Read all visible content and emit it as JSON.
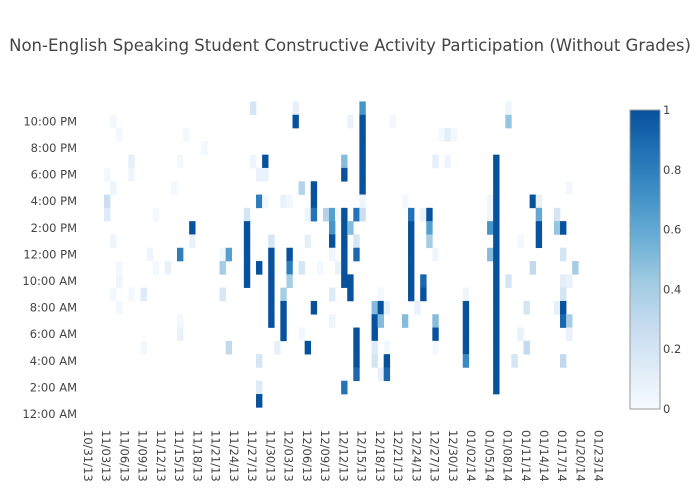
{
  "chart_data": {
    "type": "heatmap",
    "title": "Non-English Speaking Student Constructive Activity Participation (Without Grades)",
    "xlabel": "",
    "ylabel": "",
    "x_start_date": "10/31/13",
    "x_tick_labels": [
      "10/31/13",
      "11/03/13",
      "11/06/13",
      "11/09/13",
      "11/12/13",
      "11/15/13",
      "11/18/13",
      "11/21/13",
      "11/24/13",
      "11/27/13",
      "11/30/13",
      "12/03/13",
      "12/06/13",
      "12/09/13",
      "12/12/13",
      "12/15/13",
      "12/18/13",
      "12/21/13",
      "12/24/13",
      "12/27/13",
      "12/30/13",
      "01/02/14",
      "01/05/14",
      "01/08/14",
      "01/11/14",
      "01/14/14",
      "01/17/14",
      "01/20/14",
      "01/23/14"
    ],
    "x_tick_step_days": 3,
    "y_tick_labels": [
      "12:00 AM",
      "2:00 AM",
      "4:00 AM",
      "6:00 AM",
      "8:00 AM",
      "10:00 AM",
      "12:00 PM",
      "2:00 PM",
      "4:00 PM",
      "6:00 PM",
      "8:00 PM",
      "10:00 PM"
    ],
    "y_tick_step_hours": 2,
    "colorbar": {
      "ticks": [
        "0",
        "0.2",
        "0.4",
        "0.6",
        "0.8",
        "1"
      ],
      "range": [
        0,
        1
      ]
    },
    "colorscale": [
      "#f7fbff",
      "#deebf7",
      "#c6dbef",
      "#9ecae1",
      "#6baed6",
      "#4292c6",
      "#2171b5",
      "#08519c"
    ],
    "cells_format": "[day_index_from_start, hour_of_day, value]",
    "cells": [
      [
        28,
        23,
        0.2
      ],
      [
        35,
        23,
        0.1
      ],
      [
        5,
        22,
        0.03
      ],
      [
        35,
        22,
        1
      ],
      [
        6,
        21,
        0.03
      ],
      [
        17,
        21,
        0.03
      ],
      [
        20,
        20,
        0.03
      ],
      [
        8,
        19,
        0.1
      ],
      [
        16,
        19,
        0.03
      ],
      [
        28,
        19,
        0.05
      ],
      [
        30,
        19,
        1
      ],
      [
        4,
        18,
        0.03
      ],
      [
        8,
        18,
        0.05
      ],
      [
        29,
        18,
        0.08
      ],
      [
        30,
        18,
        0.08
      ],
      [
        5,
        17,
        0.05
      ],
      [
        15,
        17,
        0.03
      ],
      [
        36,
        17,
        0.35
      ],
      [
        38,
        17,
        1
      ],
      [
        4,
        16,
        0.25
      ],
      [
        29,
        16,
        0.8
      ],
      [
        30,
        16,
        0.03
      ],
      [
        33,
        16,
        0.08
      ],
      [
        34,
        16,
        0.03
      ],
      [
        38,
        16,
        1
      ],
      [
        4,
        15,
        0.15
      ],
      [
        12,
        15,
        0.03
      ],
      [
        27,
        15,
        0.2
      ],
      [
        37,
        15,
        0.05
      ],
      [
        38,
        15,
        0.85
      ],
      [
        40,
        15,
        0.35
      ],
      [
        41,
        15,
        0.65
      ],
      [
        42,
        15,
        0.03
      ],
      [
        18,
        14,
        1
      ],
      [
        27,
        14,
        1
      ],
      [
        41,
        14,
        0.7
      ],
      [
        5,
        13,
        0.05
      ],
      [
        18,
        13,
        0.08
      ],
      [
        27,
        13,
        1
      ],
      [
        31,
        13,
        0.2
      ],
      [
        37,
        13,
        0.1
      ],
      [
        41,
        13,
        1
      ],
      [
        11,
        12,
        0.05
      ],
      [
        16,
        12,
        0.8
      ],
      [
        23,
        12,
        0.03
      ],
      [
        24,
        12,
        0.65
      ],
      [
        27,
        12,
        1
      ],
      [
        31,
        12,
        1
      ],
      [
        34,
        12,
        1
      ],
      [
        41,
        12,
        0.05
      ],
      [
        6,
        11,
        0.03
      ],
      [
        12,
        11,
        0.03
      ],
      [
        14,
        11,
        0.08
      ],
      [
        23,
        11,
        0.4
      ],
      [
        27,
        11,
        1
      ],
      [
        29,
        11,
        1
      ],
      [
        31,
        11,
        1
      ],
      [
        34,
        11,
        0.8
      ],
      [
        36,
        11,
        0.2
      ],
      [
        39,
        11,
        0.03
      ],
      [
        42,
        11,
        0.08
      ],
      [
        6,
        10,
        0.05
      ],
      [
        27,
        10,
        1
      ],
      [
        31,
        10,
        1
      ],
      [
        34,
        10,
        0.4
      ],
      [
        5,
        9,
        0.03
      ],
      [
        8,
        9,
        0.03
      ],
      [
        10,
        9,
        0.15
      ],
      [
        23,
        9,
        0.18
      ],
      [
        31,
        9,
        1
      ],
      [
        33,
        9,
        0.4
      ],
      [
        41,
        9,
        0.15
      ],
      [
        6,
        8,
        0.03
      ],
      [
        31,
        8,
        1
      ],
      [
        33,
        8,
        1
      ],
      [
        38,
        8,
        1
      ],
      [
        16,
        7,
        0.03
      ],
      [
        31,
        7,
        1
      ],
      [
        33,
        7,
        1
      ],
      [
        41,
        7,
        0.05
      ],
      [
        16,
        6,
        0.08
      ],
      [
        33,
        6,
        1
      ],
      [
        36,
        6,
        0.03
      ],
      [
        10,
        5,
        0.03
      ],
      [
        24,
        5,
        0.3
      ],
      [
        32,
        5,
        0.1
      ],
      [
        37,
        5,
        1
      ],
      [
        29,
        4,
        0.2
      ],
      [
        29,
        2,
        0.15
      ],
      [
        29,
        1,
        1
      ],
      [
        46,
        23,
        0.7
      ],
      [
        70,
        23,
        0.05
      ],
      [
        44,
        22,
        0.08
      ],
      [
        46,
        22,
        1
      ],
      [
        51,
        22,
        0.03
      ],
      [
        70,
        22,
        0.45
      ],
      [
        46,
        21,
        1
      ],
      [
        59,
        21,
        0.03
      ],
      [
        60,
        21,
        0.12
      ],
      [
        61,
        21,
        0.03
      ],
      [
        46,
        20,
        1
      ],
      [
        43,
        19,
        0.5
      ],
      [
        46,
        19,
        1
      ],
      [
        58,
        19,
        0.1
      ],
      [
        60,
        19,
        0.05
      ],
      [
        68,
        19,
        1
      ],
      [
        43,
        18,
        1
      ],
      [
        46,
        18,
        1
      ],
      [
        68,
        18,
        1
      ],
      [
        46,
        17,
        1
      ],
      [
        68,
        17,
        1
      ],
      [
        80,
        17,
        0.03
      ],
      [
        46,
        16,
        0.05
      ],
      [
        53,
        16,
        0.03
      ],
      [
        67,
        16,
        0.05
      ],
      [
        68,
        16,
        1
      ],
      [
        74,
        16,
        1
      ],
      [
        75,
        16,
        0.08
      ],
      [
        43,
        15,
        1
      ],
      [
        45,
        15,
        0.85
      ],
      [
        46,
        15,
        0.25
      ],
      [
        54,
        15,
        0.85
      ],
      [
        56,
        15,
        0.08
      ],
      [
        57,
        15,
        1
      ],
      [
        67,
        15,
        0.05
      ],
      [
        68,
        15,
        1
      ],
      [
        75,
        15,
        0.6
      ],
      [
        78,
        15,
        0.2
      ],
      [
        43,
        14,
        1
      ],
      [
        44,
        14,
        0.5
      ],
      [
        54,
        14,
        1
      ],
      [
        57,
        14,
        0.65
      ],
      [
        67,
        14,
        0.7
      ],
      [
        68,
        14,
        1
      ],
      [
        75,
        14,
        1
      ],
      [
        78,
        14,
        0.45
      ],
      [
        79,
        14,
        1
      ],
      [
        43,
        13,
        1
      ],
      [
        45,
        13,
        0.2
      ],
      [
        54,
        13,
        1
      ],
      [
        57,
        13,
        0.4
      ],
      [
        68,
        13,
        1
      ],
      [
        72,
        13,
        0.03
      ],
      [
        75,
        13,
        1
      ],
      [
        43,
        12,
        1
      ],
      [
        45,
        12,
        0.9
      ],
      [
        54,
        12,
        1
      ],
      [
        58,
        12,
        0.05
      ],
      [
        67,
        12,
        0.5
      ],
      [
        68,
        12,
        1
      ],
      [
        79,
        12,
        0.2
      ],
      [
        43,
        11,
        1
      ],
      [
        54,
        11,
        1
      ],
      [
        68,
        11,
        1
      ],
      [
        74,
        11,
        0.3
      ],
      [
        81,
        11,
        0.4
      ],
      [
        43,
        10,
        1
      ],
      [
        44,
        10,
        1
      ],
      [
        54,
        10,
        1
      ],
      [
        56,
        10,
        0.9
      ],
      [
        68,
        10,
        1
      ],
      [
        70,
        10,
        0.2
      ],
      [
        79,
        10,
        0.12
      ],
      [
        80,
        10,
        0.08
      ],
      [
        44,
        9,
        1
      ],
      [
        49,
        9,
        0.03
      ],
      [
        54,
        9,
        1
      ],
      [
        56,
        9,
        1
      ],
      [
        63,
        9,
        0.05
      ],
      [
        68,
        9,
        1
      ],
      [
        79,
        9,
        0.2
      ],
      [
        48,
        8,
        0.5
      ],
      [
        49,
        8,
        1
      ],
      [
        50,
        8,
        0.08
      ],
      [
        55,
        8,
        0.08
      ],
      [
        63,
        8,
        1
      ],
      [
        68,
        8,
        1
      ],
      [
        73,
        8,
        0.2
      ],
      [
        78,
        8,
        0.1
      ],
      [
        79,
        8,
        1
      ],
      [
        48,
        7,
        1
      ],
      [
        49,
        7,
        0.5
      ],
      [
        53,
        7,
        0.5
      ],
      [
        58,
        7,
        0.5
      ],
      [
        63,
        7,
        1
      ],
      [
        68,
        7,
        1
      ],
      [
        79,
        7,
        0.9
      ],
      [
        80,
        7,
        0.4
      ],
      [
        45,
        6,
        1
      ],
      [
        48,
        6,
        1
      ],
      [
        58,
        6,
        1
      ],
      [
        63,
        6,
        1
      ],
      [
        68,
        6,
        1
      ],
      [
        72,
        6,
        0.08
      ],
      [
        80,
        6,
        0.08
      ],
      [
        45,
        5,
        1
      ],
      [
        48,
        5,
        0.15
      ],
      [
        50,
        5,
        0.03
      ],
      [
        58,
        5,
        0.03
      ],
      [
        63,
        5,
        1
      ],
      [
        68,
        5,
        1
      ],
      [
        73,
        5,
        0.3
      ],
      [
        45,
        4,
        1
      ],
      [
        48,
        4,
        0.2
      ],
      [
        50,
        4,
        1
      ],
      [
        63,
        4,
        0.75
      ],
      [
        68,
        4,
        1
      ],
      [
        71,
        4,
        0.2
      ],
      [
        79,
        4,
        0.3
      ],
      [
        45,
        3,
        0.9
      ],
      [
        49,
        3,
        0.08
      ],
      [
        50,
        3,
        0.9
      ],
      [
        68,
        3,
        1
      ],
      [
        43,
        2,
        0.85
      ],
      [
        68,
        2,
        1
      ]
    ]
  }
}
